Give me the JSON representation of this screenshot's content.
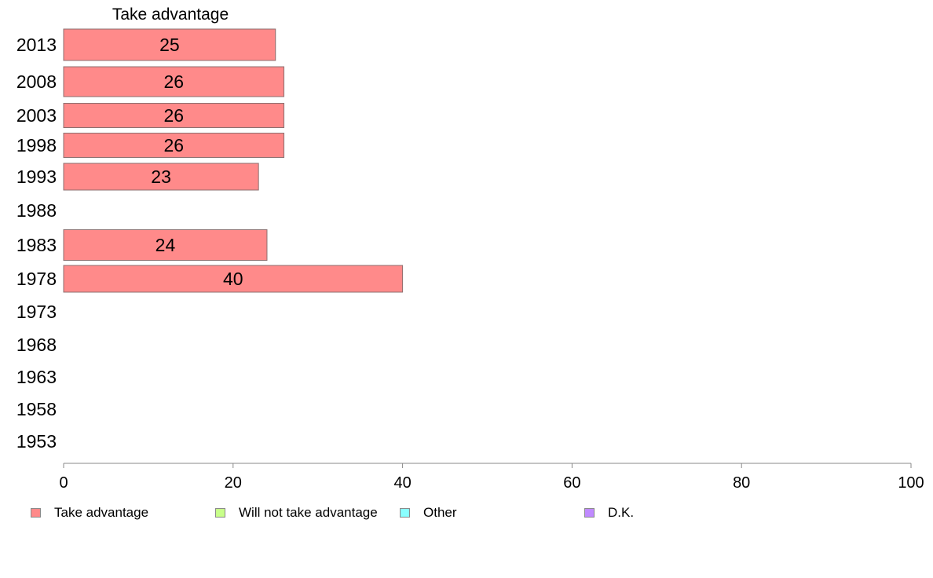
{
  "chart_data": {
    "type": "bar",
    "orientation": "horizontal",
    "title": "Take advantage",
    "categories": [
      "2013",
      "2008",
      "2003",
      "1998",
      "1993",
      "1988",
      "1983",
      "1978",
      "1973",
      "1968",
      "1963",
      "1958",
      "1953"
    ],
    "series": [
      {
        "name": "Take advantage",
        "color": "#ff8a8a",
        "values": [
          25,
          26,
          26,
          26,
          23,
          null,
          24,
          40,
          null,
          null,
          null,
          null,
          null
        ],
        "labels": [
          "25",
          "26",
          "26",
          "26",
          "23",
          "",
          "24",
          "40",
          "",
          "",
          "",
          "",
          ""
        ]
      }
    ],
    "xlim": [
      0,
      100
    ],
    "xticks": [
      "0",
      "20",
      "40",
      "60",
      "80",
      "100"
    ],
    "xlabel": "",
    "ylabel": "",
    "grid": false,
    "legend_placement": "bottom",
    "legend": [
      {
        "name": "Take advantage",
        "color": "#ff8a8a"
      },
      {
        "name": "Will not take advantage",
        "color": "#c8ff8a"
      },
      {
        "name": "Other",
        "color": "#8affff"
      },
      {
        "name": "D.K.",
        "color": "#c08aff"
      }
    ]
  }
}
